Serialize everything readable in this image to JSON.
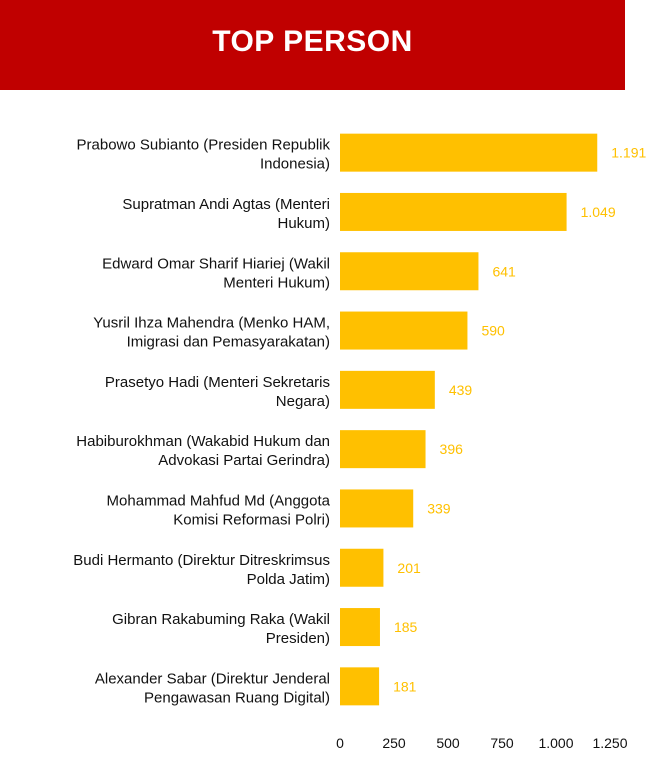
{
  "header": {
    "title": "TOP PERSON",
    "background_color": "#C00000"
  },
  "chart_data": {
    "type": "bar",
    "orientation": "horizontal",
    "title": "TOP PERSON",
    "categories": [
      [
        "Prabowo Subianto (Presiden Republik",
        "Indonesia)"
      ],
      [
        "Supratman Andi Agtas (Menteri",
        "Hukum)"
      ],
      [
        "Edward Omar Sharif Hiariej (Wakil",
        "Menteri Hukum)"
      ],
      [
        "Yusril Ihza Mahendra (Menko HAM,",
        "Imigrasi dan Pemasyarakatan)"
      ],
      [
        "Prasetyo Hadi (Menteri Sekretaris",
        "Negara)"
      ],
      [
        "Habiburokhman (Wakabid Hukum dan",
        "Advokasi Partai Gerindra)"
      ],
      [
        "Mohammad Mahfud Md (Anggota",
        "Komisi Reformasi Polri)"
      ],
      [
        "Budi Hermanto (Direktur Ditreskrimsus",
        "Polda Jatim)"
      ],
      [
        "Gibran Rakabuming Raka (Wakil",
        "Presiden)"
      ],
      [
        "Alexander Sabar (Direktur Jenderal",
        "Pengawasan Ruang Digital)"
      ]
    ],
    "values": [
      1191,
      1049,
      641,
      590,
      439,
      396,
      339,
      201,
      185,
      181
    ],
    "value_labels": [
      "1.191",
      "1.049",
      "641",
      "590",
      "439",
      "396",
      "339",
      "201",
      "185",
      "181"
    ],
    "xlim": [
      0,
      1250
    ],
    "x_ticks": [
      0,
      250,
      500,
      750,
      1000,
      1250
    ],
    "x_tick_labels": [
      "0",
      "250",
      "500",
      "750",
      "1.000",
      "1.250"
    ],
    "bar_color": "#FFC000",
    "label_color": "#FFC000",
    "grid": false,
    "legend": "none"
  }
}
